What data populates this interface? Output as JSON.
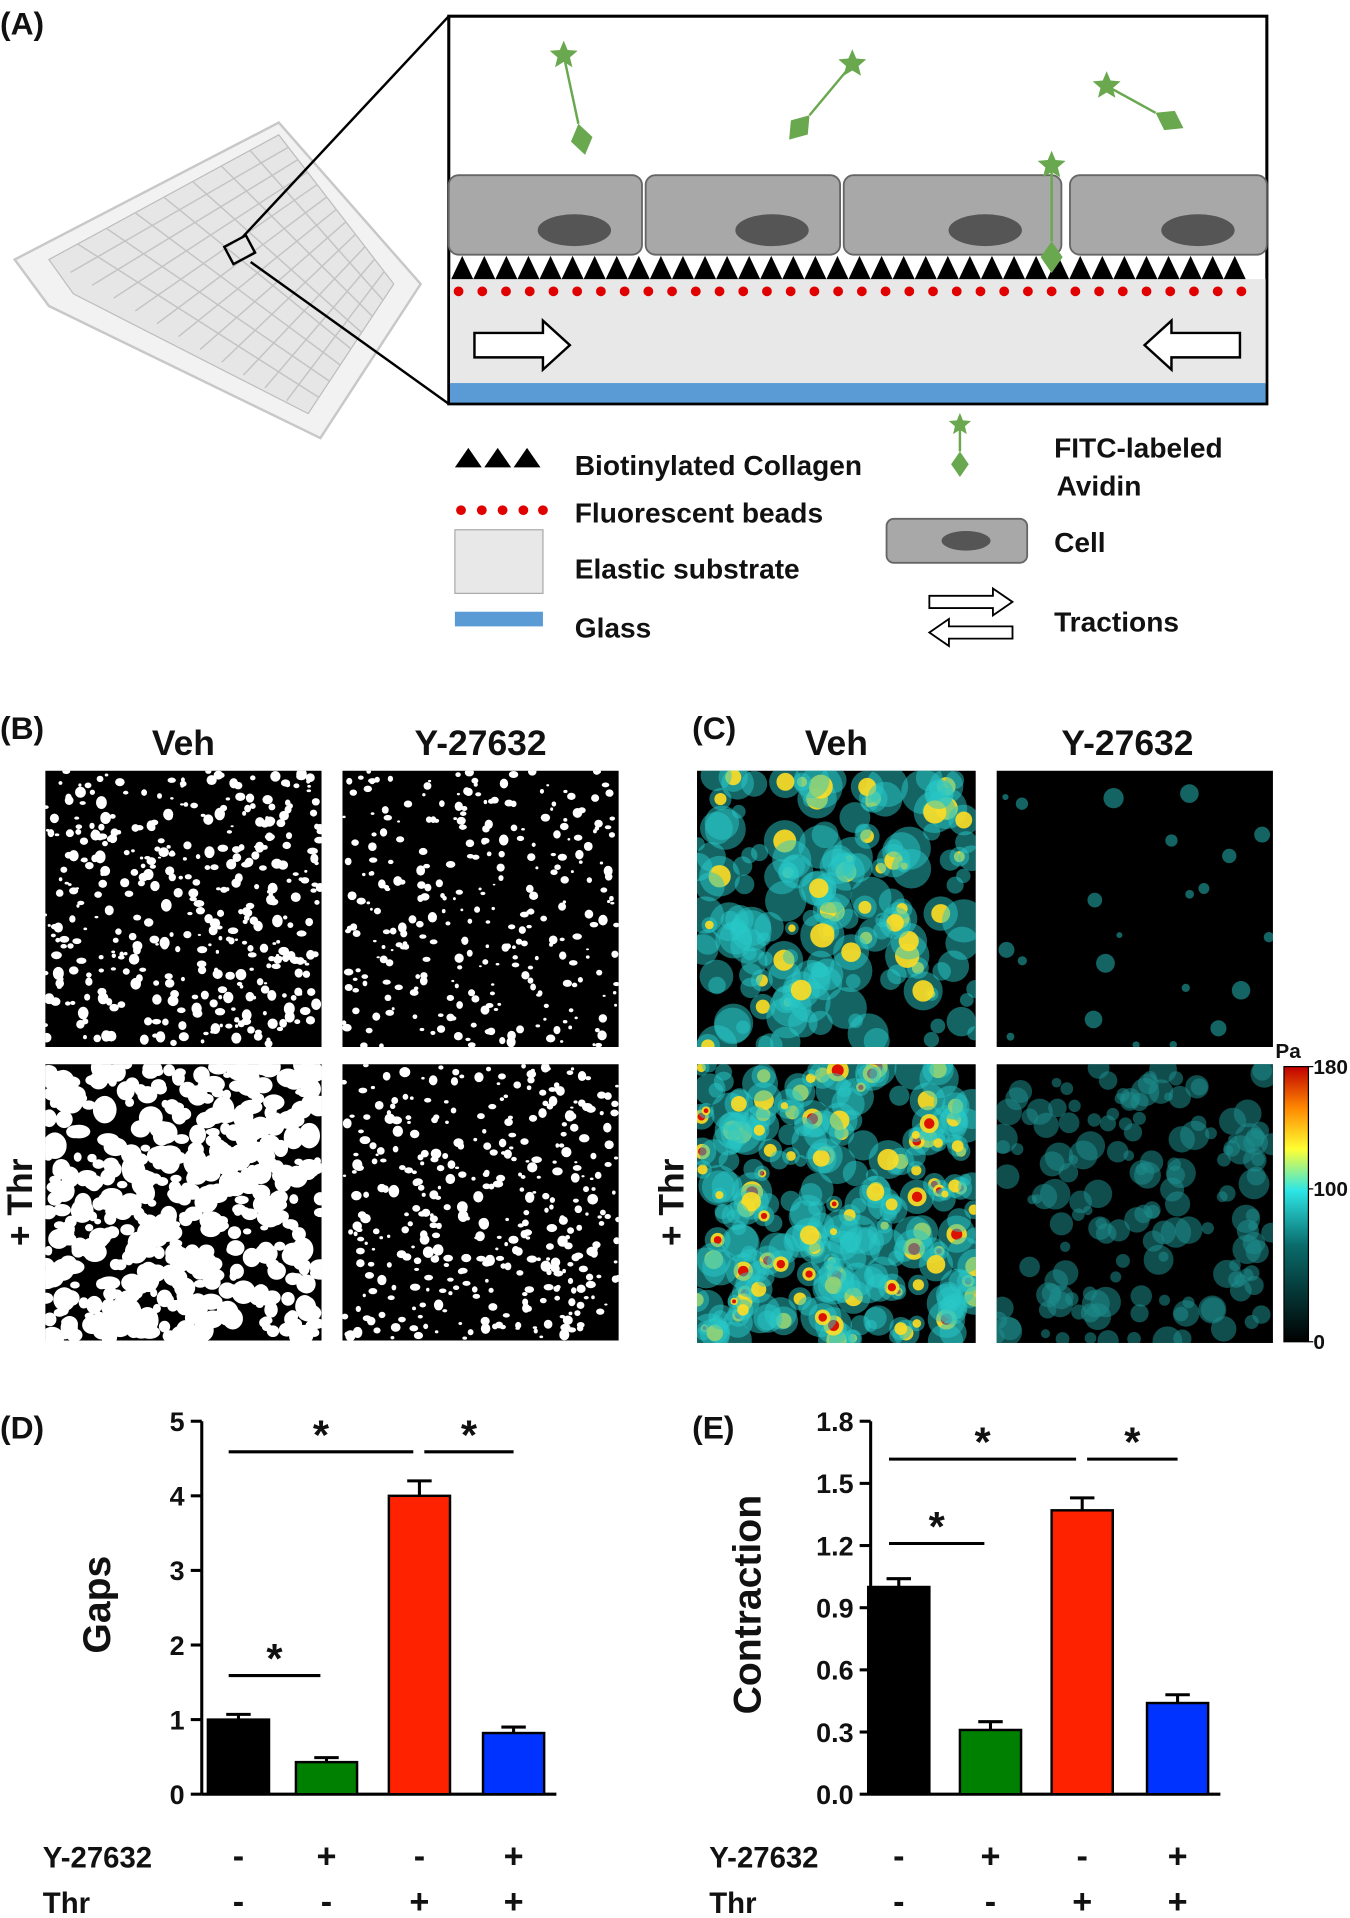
{
  "panel_labels": [
    "(A)",
    "(B)",
    "(C)",
    "(D)",
    "(E)"
  ],
  "legend": {
    "collagen": "Biotinylated Collagen",
    "beads": "Fluorescent beads",
    "substrate": "Elastic substrate",
    "glass": "Glass",
    "avidin": [
      "FITC-labeled",
      "Avidin"
    ],
    "cell": "Cell",
    "tractions": "Tractions"
  },
  "panel_b": {
    "columns": [
      "Veh",
      "Y-27632"
    ],
    "row_label": "+ Thr"
  },
  "panel_c": {
    "columns": [
      "Veh",
      "Y-27632"
    ],
    "row_label": "+ Thr",
    "colorbar": {
      "unit": "Pa",
      "lim": [
        0,
        180
      ],
      "ticks": [
        0,
        100,
        180
      ]
    }
  },
  "chart_data": [
    {
      "type": "bar",
      "ylabel": "Gaps",
      "values": [
        1.0,
        0.43,
        4.0,
        0.82
      ],
      "errors": [
        0.07,
        0.06,
        0.2,
        0.08
      ],
      "colors": [
        "#000000",
        "#008000",
        "#ff2200",
        "#0033ff"
      ],
      "ylim": [
        0,
        5
      ],
      "yticks": [
        0,
        1,
        2,
        3,
        4,
        5
      ],
      "conditions": [
        {
          "name": "Y-27632",
          "values": [
            "-",
            "+",
            "-",
            "+"
          ]
        },
        {
          "name": "Thr",
          "values": [
            "-",
            "-",
            "+",
            "+"
          ]
        }
      ],
      "annotations": [
        "*",
        "*",
        "*"
      ]
    },
    {
      "type": "bar",
      "ylabel": "Contraction",
      "values": [
        1.0,
        0.31,
        1.37,
        0.44
      ],
      "errors": [
        0.04,
        0.04,
        0.06,
        0.04
      ],
      "colors": [
        "#000000",
        "#008000",
        "#ff2200",
        "#0033ff"
      ],
      "ylim": [
        0,
        1.8
      ],
      "yticks": [
        {
          "value": 0,
          "label": "0.0"
        },
        0.3,
        0.6,
        0.9,
        1.2,
        1.5,
        1.8
      ],
      "conditions": [
        {
          "name": "Y-27632",
          "values": [
            "-",
            "+",
            "-",
            "+"
          ]
        },
        {
          "name": "Thr",
          "values": [
            "-",
            "-",
            "+",
            "+"
          ]
        }
      ],
      "annotations": [
        "*",
        "*",
        "*"
      ]
    }
  ]
}
